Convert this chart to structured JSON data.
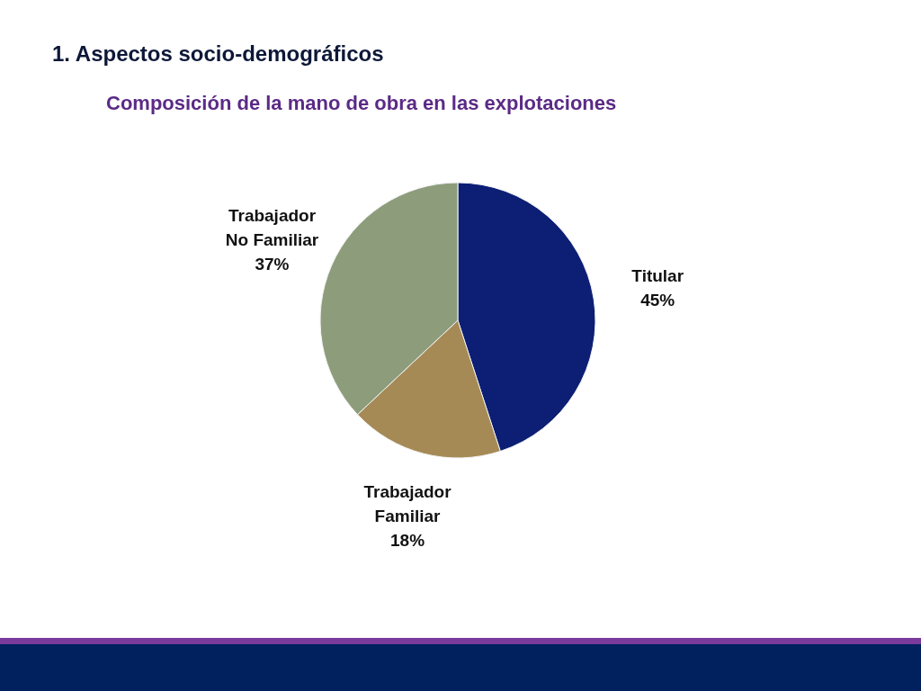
{
  "chart_data": {
    "type": "pie",
    "title": "1. Aspectos socio-demográficos",
    "subtitle": "Composición de la mano de obra en las explotaciones",
    "categories": [
      "Titular",
      "Trabajador Familiar",
      "Trabajador No Familiar"
    ],
    "values": [
      45,
      18,
      37
    ],
    "colors": [
      "#0c1f74",
      "#a68a56",
      "#8d9d7c"
    ],
    "value_labels": [
      "45%",
      "18%",
      "37%"
    ]
  }
}
